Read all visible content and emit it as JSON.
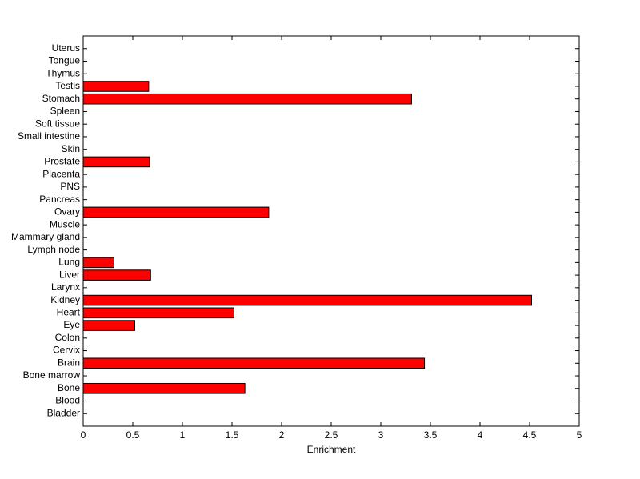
{
  "chart_data": {
    "type": "barh",
    "categories": [
      "Bladder",
      "Blood",
      "Bone",
      "Bone marrow",
      "Brain",
      "Cervix",
      "Colon",
      "Eye",
      "Heart",
      "Kidney",
      "Larynx",
      "Liver",
      "Lung",
      "Lymph node",
      "Mammary gland",
      "Muscle",
      "Ovary",
      "Pancreas",
      "PNS",
      "Placenta",
      "Prostate",
      "Skin",
      "Small intestine",
      "Soft tissue",
      "Spleen",
      "Stomach",
      "Testis",
      "Thymus",
      "Tongue",
      "Uterus"
    ],
    "values": [
      0,
      0,
      1.63,
      0,
      3.44,
      0,
      0,
      0.52,
      1.52,
      4.52,
      0,
      0.68,
      0.31,
      0,
      0,
      0,
      1.87,
      0,
      0,
      0,
      0.67,
      0,
      0,
      0,
      0,
      3.31,
      0.66,
      0,
      0,
      0
    ],
    "color": "#ff0000",
    "xlabel": "Enrichment",
    "xlim": [
      0,
      5
    ],
    "xticks": [
      0,
      0.5,
      1,
      1.5,
      2,
      2.5,
      3,
      3.5,
      4,
      4.5,
      5
    ],
    "grid": false
  }
}
